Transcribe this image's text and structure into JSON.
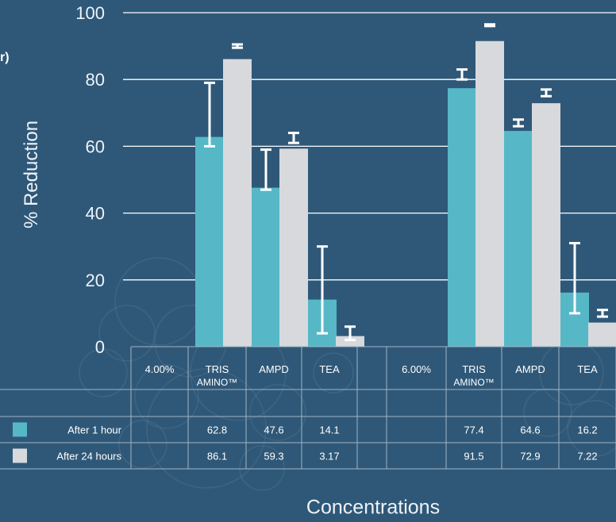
{
  "chart_data": {
    "type": "bar",
    "title": "",
    "partial_title_fragment": "r)",
    "ylabel": "% Reduction",
    "xlabel": "Concentrations",
    "ylim": [
      0,
      100
    ],
    "yticks": [
      0,
      20,
      40,
      60,
      80,
      100
    ],
    "groups": [
      {
        "concentration": "4.00%",
        "categories": [
          "TRIS AMINO™",
          "AMPD",
          "TEA"
        ],
        "series": [
          {
            "name": "After 1 hour",
            "values": [
              62.8,
              47.6,
              14.1
            ],
            "error_low": [
              60,
              47,
              4
            ],
            "error_high": [
              79,
              59,
              30
            ]
          },
          {
            "name": "After 24 hours",
            "values": [
              86.1,
              59.3,
              3.17
            ],
            "error_low": [
              89.5,
              61,
              2
            ],
            "error_high": [
              90.5,
              64,
              6
            ]
          }
        ]
      },
      {
        "concentration": "6.00%",
        "categories": [
          "TRIS AMINO™",
          "AMPD",
          "TEA"
        ],
        "series": [
          {
            "name": "After 1 hour",
            "values": [
              77.4,
              64.6,
              16.2
            ],
            "error_low": [
              80,
              66,
              10
            ],
            "error_high": [
              83,
              68,
              31
            ]
          },
          {
            "name": "After 24 hours",
            "values": [
              91.5,
              72.9,
              7.22
            ],
            "error_low": [
              96,
              75,
              9
            ],
            "error_high": [
              96.5,
              77,
              11
            ]
          }
        ]
      }
    ],
    "table": {
      "header_row": [
        "4.00%",
        "TRIS AMINO™",
        "AMPD",
        "TEA",
        "6.00%",
        "TRIS AMINO™",
        "AMPD",
        "TEA"
      ],
      "rows": [
        {
          "label": "After 1 hour",
          "cells": [
            "62.8",
            "47.6",
            "14.1",
            "77.4",
            "64.6",
            "16.2"
          ]
        },
        {
          "label": "After 24 hours",
          "cells": [
            "86.1",
            "59.3",
            "3.17",
            "91.5",
            "72.9",
            "7.22"
          ]
        }
      ]
    },
    "colors": {
      "series1": "#56b8c6",
      "series2": "#d7d9dc",
      "background": "#2f5878",
      "grid": "#ffffff"
    },
    "grid": true
  }
}
